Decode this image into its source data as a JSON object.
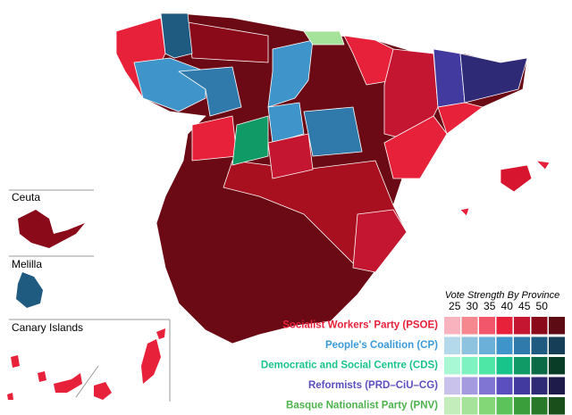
{
  "insets": {
    "ceuta": "Ceuta",
    "melilla": "Melilla",
    "canary": "Canary Islands"
  },
  "legend": {
    "title": "Vote Strength By Province",
    "scale": [
      25,
      30,
      35,
      40,
      45,
      50
    ],
    "parties": [
      {
        "name": "Socialist Workers' Party (PSOE)",
        "color": "#e8213a",
        "shades": [
          "#f9b3bf",
          "#f5888f",
          "#f2566a",
          "#e8213a",
          "#c41630",
          "#8b0a1a",
          "#5c0a14"
        ]
      },
      {
        "name": "People's Coalition (CP)",
        "color": "#3a9ad9",
        "shades": [
          "#b3d9ea",
          "#8ec3e0",
          "#6bb0d8",
          "#3f95c9",
          "#2f7aab",
          "#1f5a80",
          "#163f57"
        ]
      },
      {
        "name": "Democratic and Social Centre (CDS)",
        "color": "#19c48a",
        "shades": [
          "#a8f7d5",
          "#7ff2c1",
          "#4ee7a5",
          "#19c48a",
          "#109a66",
          "#0b6b46",
          "#0a3d28"
        ]
      },
      {
        "name": "Reformists (PRD–CiU–CG)",
        "color": "#5b4fbf",
        "shades": [
          "#c9c3ec",
          "#a39ae0",
          "#8075d2",
          "#5b4fbf",
          "#423a9e",
          "#2f2a75",
          "#1e1a4a"
        ]
      },
      {
        "name": "Basque Nationalist Party (PNV)",
        "color": "#4db34d",
        "shades": [
          "#c3edbb",
          "#a6e39a",
          "#84d777",
          "#5cc35a",
          "#3a9f3a",
          "#287a2a",
          "#1a4f1c"
        ]
      }
    ]
  }
}
